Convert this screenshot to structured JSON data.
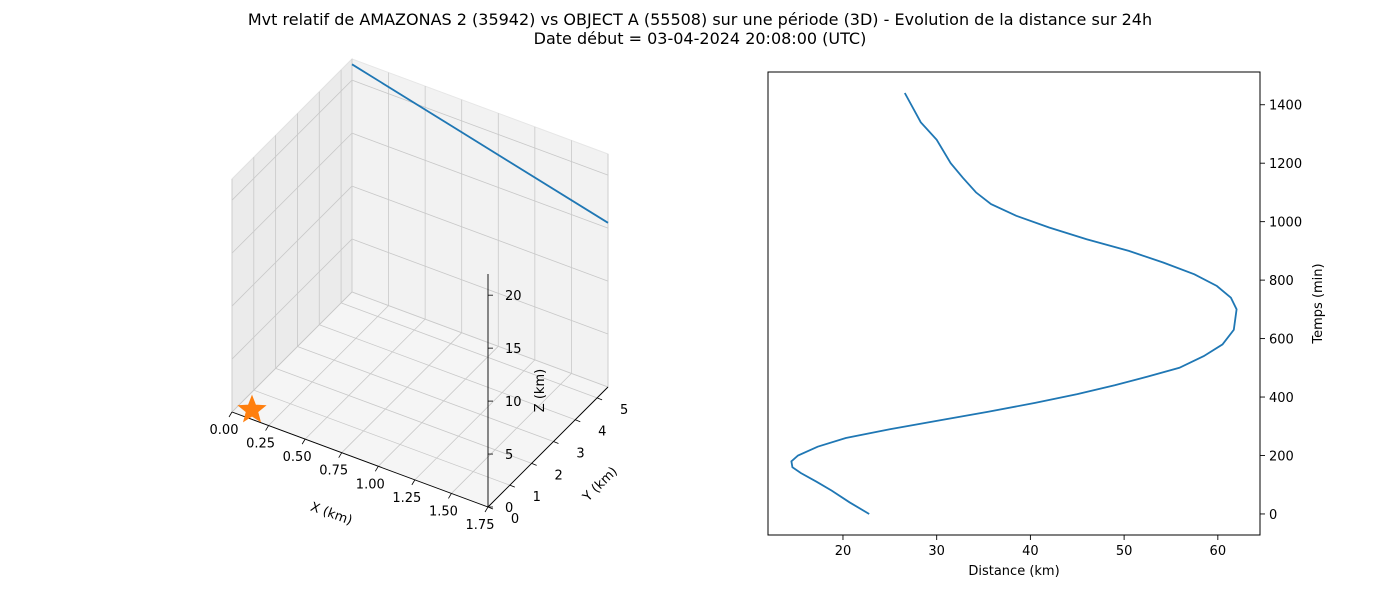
{
  "figure": {
    "title_line1": "Mvt relatif de AMAZONAS 2 (35942) vs OBJECT A (55508) sur une période (3D) - Evolution de la distance sur 24h",
    "title_line2": "Date début = 03-04-2024 20:08:00 (UTC)"
  },
  "colors": {
    "series": "#1f77b4",
    "marker": "#ff7f0e",
    "pane_side": "#ebebeb",
    "pane_back": "#f2f2f2",
    "pane_floor": "#f5f5f5",
    "grid": "#c8c8c8"
  },
  "chart_data": [
    {
      "type": "line3d",
      "xlabel": "X (km)",
      "ylabel": "Y (km)",
      "zlabel": "Z (km)",
      "xlim": [
        0,
        1.75
      ],
      "ylim": [
        0,
        5.5
      ],
      "zlim": [
        0,
        22
      ],
      "xticks": [
        "0.00",
        "0.25",
        "0.50",
        "0.75",
        "1.00",
        "1.25",
        "1.50",
        "1.75"
      ],
      "yticks": [
        "0",
        "1",
        "2",
        "3",
        "4",
        "5"
      ],
      "zticks": [
        "0",
        "5",
        "10",
        "15",
        "20"
      ],
      "grid": true,
      "series": [
        {
          "points": [
            [
              0.0,
              5.5,
              21.5
            ],
            [
              1.75,
              5.5,
              15.5
            ]
          ]
        }
      ],
      "marker": {
        "shape": "star",
        "point": [
          0.0,
          0.0,
          0.0
        ]
      }
    },
    {
      "type": "line",
      "xlabel": "Distance (km)",
      "ylabel": "Temps (min)",
      "xlim": [
        12,
        64.5
      ],
      "ylim": [
        -72,
        1512
      ],
      "xticks": [
        "20",
        "30",
        "40",
        "50",
        "60"
      ],
      "yticks": [
        "0",
        "200",
        "400",
        "600",
        "800",
        "1000",
        "1200",
        "1400"
      ],
      "yaxis_position": "right",
      "grid": false,
      "series": [
        {
          "x": [
            22.8,
            20.7,
            18.8,
            17.2,
            15.5,
            14.6,
            14.5,
            15.2,
            17.3,
            20.3,
            25,
            30.3,
            35.5,
            40.5,
            45,
            49,
            52.5,
            55.9,
            58.5,
            60.5,
            61.7,
            62,
            61.4,
            59.9,
            57.5,
            54.2,
            50.5,
            46,
            42,
            38.5,
            35.8,
            34.2,
            32.8,
            31.5,
            30,
            28.3,
            26.6
          ],
          "y": [
            0,
            40,
            80,
            110,
            140,
            160,
            180,
            200,
            230,
            260,
            290,
            320,
            350,
            380,
            410,
            440,
            470,
            500,
            540,
            580,
            630,
            700,
            740,
            780,
            820,
            860,
            900,
            940,
            980,
            1020,
            1060,
            1100,
            1150,
            1200,
            1280,
            1340,
            1440
          ]
        }
      ]
    }
  ]
}
